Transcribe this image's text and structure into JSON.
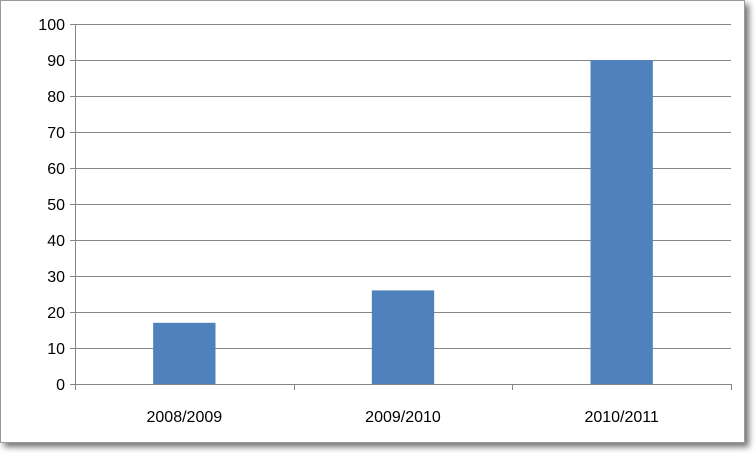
{
  "chart_data": {
    "type": "bar",
    "categories": [
      "2008/2009",
      "2009/2010",
      "2010/2011"
    ],
    "values": [
      17,
      26,
      90
    ],
    "title": "",
    "xlabel": "",
    "ylabel": "",
    "ylim": [
      0,
      100
    ],
    "yticks": [
      "0",
      "10",
      "20",
      "30",
      "40",
      "50",
      "60",
      "70",
      "80",
      "90",
      "100"
    ],
    "grid": true,
    "legend": "none",
    "bar_color": "#4F81BD",
    "grid_color": "#868686"
  }
}
